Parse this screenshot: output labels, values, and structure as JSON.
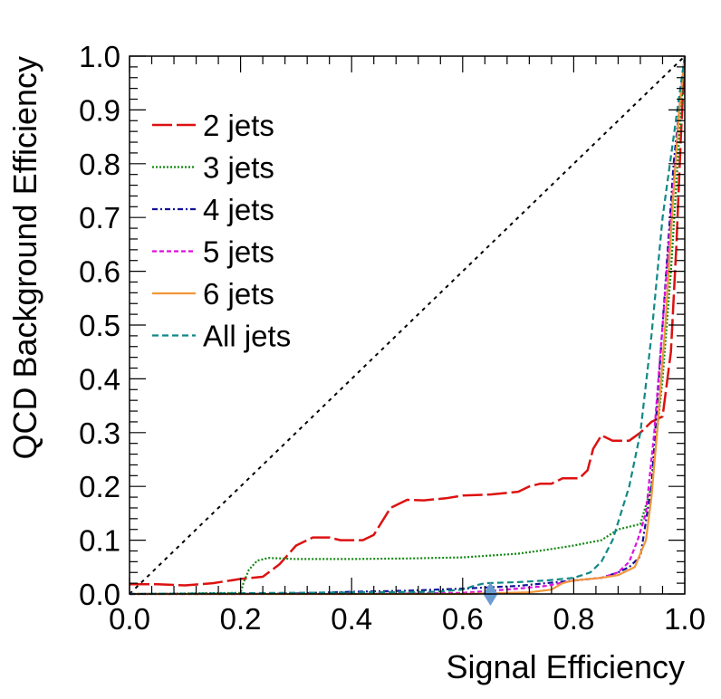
{
  "chart_data": {
    "type": "line",
    "title": "",
    "xlabel": "Signal Efficiency",
    "ylabel": "QCD Background Efficiency",
    "xlim": [
      0,
      1
    ],
    "ylim": [
      0,
      1
    ],
    "x_ticks": [
      "0.0",
      "0.2",
      "0.4",
      "0.6",
      "0.8",
      "1.0"
    ],
    "y_ticks": [
      "0.0",
      "0.1",
      "0.2",
      "0.3",
      "0.4",
      "0.5",
      "0.6",
      "0.7",
      "0.8",
      "0.9",
      "1.0"
    ],
    "legend_position": "upper-left",
    "grid": false,
    "series": [
      {
        "name": "2 jets",
        "color": "#dd1111",
        "dash": "22,5",
        "width": 2.5,
        "points": [
          [
            0,
            0.018
          ],
          [
            0.05,
            0.018
          ],
          [
            0.1,
            0.016
          ],
          [
            0.15,
            0.02
          ],
          [
            0.2,
            0.028
          ],
          [
            0.24,
            0.032
          ],
          [
            0.27,
            0.055
          ],
          [
            0.3,
            0.09
          ],
          [
            0.33,
            0.105
          ],
          [
            0.36,
            0.105
          ],
          [
            0.38,
            0.1
          ],
          [
            0.42,
            0.1
          ],
          [
            0.44,
            0.11
          ],
          [
            0.47,
            0.16
          ],
          [
            0.5,
            0.175
          ],
          [
            0.53,
            0.174
          ],
          [
            0.57,
            0.178
          ],
          [
            0.6,
            0.183
          ],
          [
            0.65,
            0.185
          ],
          [
            0.7,
            0.19
          ],
          [
            0.72,
            0.2
          ],
          [
            0.74,
            0.205
          ],
          [
            0.76,
            0.205
          ],
          [
            0.78,
            0.215
          ],
          [
            0.81,
            0.215
          ],
          [
            0.825,
            0.23
          ],
          [
            0.835,
            0.27
          ],
          [
            0.85,
            0.295
          ],
          [
            0.87,
            0.285
          ],
          [
            0.9,
            0.285
          ],
          [
            0.92,
            0.3
          ],
          [
            0.94,
            0.32
          ],
          [
            0.96,
            0.33
          ],
          [
            0.975,
            0.45
          ],
          [
            0.985,
            0.65
          ],
          [
            0.993,
            0.85
          ],
          [
            1.0,
            1.0
          ]
        ]
      },
      {
        "name": "3 jets",
        "color": "#118811",
        "dash": "2,2",
        "width": 2.2,
        "points": [
          [
            0,
            0
          ],
          [
            0.2,
            0.002
          ],
          [
            0.205,
            0.02
          ],
          [
            0.215,
            0.045
          ],
          [
            0.23,
            0.062
          ],
          [
            0.25,
            0.067
          ],
          [
            0.3,
            0.065
          ],
          [
            0.4,
            0.065
          ],
          [
            0.5,
            0.066
          ],
          [
            0.6,
            0.068
          ],
          [
            0.7,
            0.075
          ],
          [
            0.75,
            0.082
          ],
          [
            0.8,
            0.09
          ],
          [
            0.85,
            0.1
          ],
          [
            0.88,
            0.12
          ],
          [
            0.92,
            0.13
          ],
          [
            0.94,
            0.2
          ],
          [
            0.96,
            0.4
          ],
          [
            0.975,
            0.6
          ],
          [
            0.99,
            0.85
          ],
          [
            1.0,
            1.0
          ]
        ]
      },
      {
        "name": "4 jets",
        "color": "#111199",
        "dash": "6,3,2,3",
        "width": 2.2,
        "points": [
          [
            0,
            0
          ],
          [
            0.2,
            0
          ],
          [
            0.3,
            0.001
          ],
          [
            0.4,
            0.004
          ],
          [
            0.45,
            0.005
          ],
          [
            0.5,
            0.006
          ],
          [
            0.6,
            0.01
          ],
          [
            0.7,
            0.015
          ],
          [
            0.8,
            0.025
          ],
          [
            0.85,
            0.03
          ],
          [
            0.88,
            0.04
          ],
          [
            0.9,
            0.05
          ],
          [
            0.92,
            0.07
          ],
          [
            0.94,
            0.2
          ],
          [
            0.96,
            0.5
          ],
          [
            0.98,
            0.8
          ],
          [
            1.0,
            1.0
          ]
        ]
      },
      {
        "name": "5 jets",
        "color": "#dd11dd",
        "dash": "5,3",
        "width": 2.2,
        "points": [
          [
            0,
            0
          ],
          [
            0.4,
            0
          ],
          [
            0.6,
            0.002
          ],
          [
            0.7,
            0.01
          ],
          [
            0.75,
            0.015
          ],
          [
            0.8,
            0.025
          ],
          [
            0.85,
            0.03
          ],
          [
            0.88,
            0.04
          ],
          [
            0.9,
            0.06
          ],
          [
            0.915,
            0.1
          ],
          [
            0.93,
            0.15
          ],
          [
            0.945,
            0.3
          ],
          [
            0.96,
            0.5
          ],
          [
            0.975,
            0.7
          ],
          [
            0.99,
            0.9
          ],
          [
            1.0,
            1.0
          ]
        ]
      },
      {
        "name": "6 jets",
        "color": "#f2963a",
        "dash": "",
        "width": 2.2,
        "points": [
          [
            0,
            0
          ],
          [
            0.6,
            0
          ],
          [
            0.72,
            0.003
          ],
          [
            0.76,
            0.008
          ],
          [
            0.78,
            0.02
          ],
          [
            0.8,
            0.025
          ],
          [
            0.85,
            0.03
          ],
          [
            0.88,
            0.035
          ],
          [
            0.91,
            0.05
          ],
          [
            0.93,
            0.1
          ],
          [
            0.94,
            0.18
          ],
          [
            0.95,
            0.3
          ],
          [
            0.965,
            0.5
          ],
          [
            0.98,
            0.75
          ],
          [
            0.99,
            0.9
          ],
          [
            1.0,
            1.0
          ]
        ]
      },
      {
        "name": "All jets",
        "color": "#118888",
        "dash": "7,4",
        "width": 2.2,
        "points": [
          [
            0,
            0
          ],
          [
            0.55,
            0.004
          ],
          [
            0.6,
            0.008
          ],
          [
            0.62,
            0.015
          ],
          [
            0.64,
            0.02
          ],
          [
            0.7,
            0.022
          ],
          [
            0.75,
            0.025
          ],
          [
            0.8,
            0.03
          ],
          [
            0.83,
            0.04
          ],
          [
            0.85,
            0.06
          ],
          [
            0.87,
            0.1
          ],
          [
            0.9,
            0.2
          ],
          [
            0.92,
            0.3
          ],
          [
            0.94,
            0.48
          ],
          [
            0.96,
            0.7
          ],
          [
            0.98,
            0.85
          ],
          [
            1.0,
            1.0
          ]
        ]
      }
    ],
    "reference_line": {
      "from": [
        0,
        0
      ],
      "to": [
        1,
        1
      ],
      "color": "#000000",
      "dash": "4,5"
    },
    "marker": {
      "shape": "diamond",
      "x": 0.65,
      "y": 0.0,
      "color": "#6a9bd1"
    }
  }
}
